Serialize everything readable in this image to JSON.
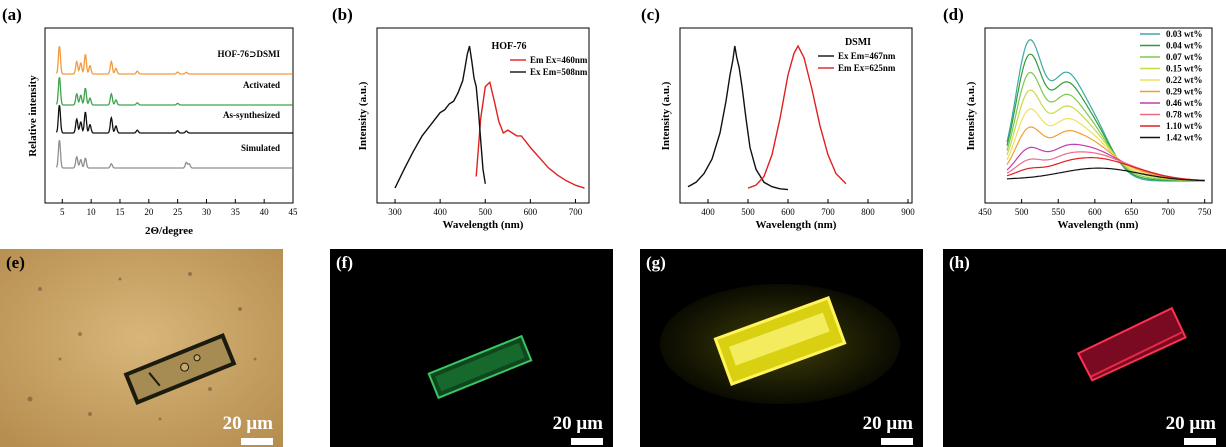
{
  "panels": {
    "a": {
      "label": "(a)"
    },
    "b": {
      "label": "(b)"
    },
    "c": {
      "label": "(c)"
    },
    "d": {
      "label": "(d)"
    },
    "e": {
      "label": "(e)"
    },
    "f": {
      "label": "(f)"
    },
    "g": {
      "label": "(g)"
    },
    "h": {
      "label": "(h)"
    }
  },
  "micrographs": {
    "scale_text": "20 μm",
    "e": {
      "background": "#c9a46a",
      "crystal": "#a88a4e",
      "edge": "#1b1b10"
    },
    "f": {
      "background": "#000000",
      "crystal": "#1f8a3a",
      "edge": "#3fcf6a"
    },
    "g": {
      "background": "#000000",
      "crystal": "#e8e020",
      "edge": "#fff45a"
    },
    "h": {
      "background": "#000000",
      "crystal": "#a01030",
      "edge": "#ff3050"
    }
  },
  "chart_data": [
    {
      "type": "line",
      "id": "a",
      "title": "",
      "xlabel": "2Θ/degree",
      "ylabel": "Relative intensity",
      "xlim": [
        2,
        45
      ],
      "xticks": [
        5,
        10,
        15,
        20,
        25,
        30,
        35,
        40,
        45
      ],
      "grid": false,
      "series": [
        {
          "name": "HOF-76⊃DSMI",
          "color": "#f39a3c",
          "peaks": [
            [
              4.5,
              1.0
            ],
            [
              7.5,
              0.45
            ],
            [
              8.2,
              0.4
            ],
            [
              9.0,
              0.7
            ],
            [
              9.8,
              0.3
            ],
            [
              13.5,
              0.45
            ],
            [
              14.3,
              0.2
            ],
            [
              18.0,
              0.1
            ],
            [
              25.0,
              0.07
            ],
            [
              26.5,
              0.06
            ]
          ]
        },
        {
          "name": "Activated",
          "color": "#3fa34d",
          "peaks": [
            [
              4.5,
              1.0
            ],
            [
              7.5,
              0.4
            ],
            [
              8.2,
              0.35
            ],
            [
              9.0,
              0.6
            ],
            [
              9.8,
              0.25
            ],
            [
              13.5,
              0.4
            ],
            [
              14.3,
              0.18
            ],
            [
              18.0,
              0.08
            ],
            [
              25.0,
              0.06
            ]
          ]
        },
        {
          "name": "As-synthesized",
          "color": "#111111",
          "peaks": [
            [
              4.5,
              1.0
            ],
            [
              7.5,
              0.5
            ],
            [
              8.2,
              0.4
            ],
            [
              9.0,
              0.75
            ],
            [
              9.8,
              0.3
            ],
            [
              13.5,
              0.55
            ],
            [
              14.3,
              0.25
            ],
            [
              18.0,
              0.1
            ],
            [
              25.0,
              0.08
            ],
            [
              26.5,
              0.07
            ]
          ]
        },
        {
          "name": "Simulated",
          "color": "#8f8f8f",
          "peaks": [
            [
              4.5,
              1.0
            ],
            [
              7.5,
              0.4
            ],
            [
              8.2,
              0.3
            ],
            [
              9.0,
              0.35
            ],
            [
              13.5,
              0.15
            ],
            [
              26.5,
              0.2
            ],
            [
              27.0,
              0.15
            ]
          ]
        }
      ]
    },
    {
      "type": "line",
      "id": "b",
      "title": "HOF-76",
      "xlabel": "Wavelength (nm)",
      "ylabel": "Intensity (a.u.)",
      "xlim": [
        260,
        730
      ],
      "xticks": [
        300,
        400,
        500,
        600,
        700
      ],
      "legend": "top-right",
      "series": [
        {
          "name": "Em Ex=460nm",
          "color": "#e02020",
          "x": [
            480,
            490,
            500,
            510,
            520,
            530,
            540,
            550,
            560,
            570,
            580,
            590,
            600,
            620,
            640,
            660,
            680,
            700,
            720
          ],
          "y": [
            0.1,
            0.5,
            0.72,
            0.75,
            0.62,
            0.48,
            0.4,
            0.42,
            0.4,
            0.38,
            0.38,
            0.34,
            0.3,
            0.23,
            0.16,
            0.11,
            0.07,
            0.04,
            0.02
          ]
        },
        {
          "name": "Ex Em=508nm",
          "color": "#111111",
          "x": [
            300,
            320,
            340,
            360,
            380,
            400,
            410,
            420,
            430,
            440,
            450,
            455,
            460,
            465,
            470,
            475,
            480,
            485,
            490,
            495,
            500
          ],
          "y": [
            0.02,
            0.15,
            0.27,
            0.38,
            0.46,
            0.54,
            0.56,
            0.6,
            0.62,
            0.68,
            0.76,
            0.85,
            0.94,
            1.0,
            0.9,
            0.78,
            0.72,
            0.55,
            0.35,
            0.15,
            0.05
          ]
        }
      ]
    },
    {
      "type": "line",
      "id": "c",
      "title": "DSMI",
      "xlabel": "Wavelength (nm)",
      "ylabel": "Intensity (a.u.)",
      "xlim": [
        330,
        910
      ],
      "xticks": [
        400,
        500,
        600,
        700,
        800,
        900
      ],
      "legend": "top-right",
      "series": [
        {
          "name": "Ex Em=467nm",
          "color": "#111111",
          "x": [
            350,
            370,
            390,
            410,
            430,
            445,
            455,
            462,
            467,
            472,
            478,
            485,
            495,
            505,
            520,
            540,
            560,
            580,
            600
          ],
          "y": [
            0.03,
            0.06,
            0.12,
            0.22,
            0.4,
            0.62,
            0.8,
            0.9,
            1.0,
            0.92,
            0.85,
            0.72,
            0.5,
            0.3,
            0.15,
            0.06,
            0.03,
            0.015,
            0.01
          ]
        },
        {
          "name": "Em Ex=625nm",
          "color": "#e02020",
          "x": [
            500,
            520,
            540,
            560,
            580,
            600,
            615,
            625,
            640,
            660,
            680,
            700,
            720,
            745
          ],
          "y": [
            0.02,
            0.04,
            0.1,
            0.25,
            0.5,
            0.8,
            0.95,
            1.0,
            0.92,
            0.7,
            0.45,
            0.25,
            0.12,
            0.05
          ]
        }
      ]
    },
    {
      "type": "line",
      "id": "d",
      "title": "",
      "xlabel": "Wavelength (nm)",
      "ylabel": "Intensity (a.u.)",
      "xlim": [
        450,
        760
      ],
      "xticks": [
        450,
        500,
        550,
        600,
        650,
        700,
        750
      ],
      "legend": "top-right",
      "series": [
        {
          "name": "0.03 wt%",
          "color": "#3aa9a3",
          "scale": 1.0,
          "ratio": 0.0
        },
        {
          "name": "0.04 wt%",
          "color": "#2e9e3a",
          "scale": 0.93,
          "ratio": 0.04
        },
        {
          "name": "0.07 wt%",
          "color": "#7ec850",
          "scale": 0.84,
          "ratio": 0.1
        },
        {
          "name": "0.15 wt%",
          "color": "#c3dc48",
          "scale": 0.76,
          "ratio": 0.18
        },
        {
          "name": "0.22 wt%",
          "color": "#f0e060",
          "scale": 0.67,
          "ratio": 0.28
        },
        {
          "name": "0.29 wt%",
          "color": "#f1a030",
          "scale": 0.58,
          "ratio": 0.4
        },
        {
          "name": "0.46 wt%",
          "color": "#c03fb0",
          "scale": 0.47,
          "ratio": 0.58
        },
        {
          "name": "0.78 wt%",
          "color": "#f06a8a",
          "scale": 0.4,
          "ratio": 0.72
        },
        {
          "name": "1.10 wt%",
          "color": "#e02020",
          "scale": 0.33,
          "ratio": 0.85
        },
        {
          "name": "1.42 wt%",
          "color": "#111111",
          "scale": 0.18,
          "ratio": 1.0
        }
      ]
    }
  ]
}
